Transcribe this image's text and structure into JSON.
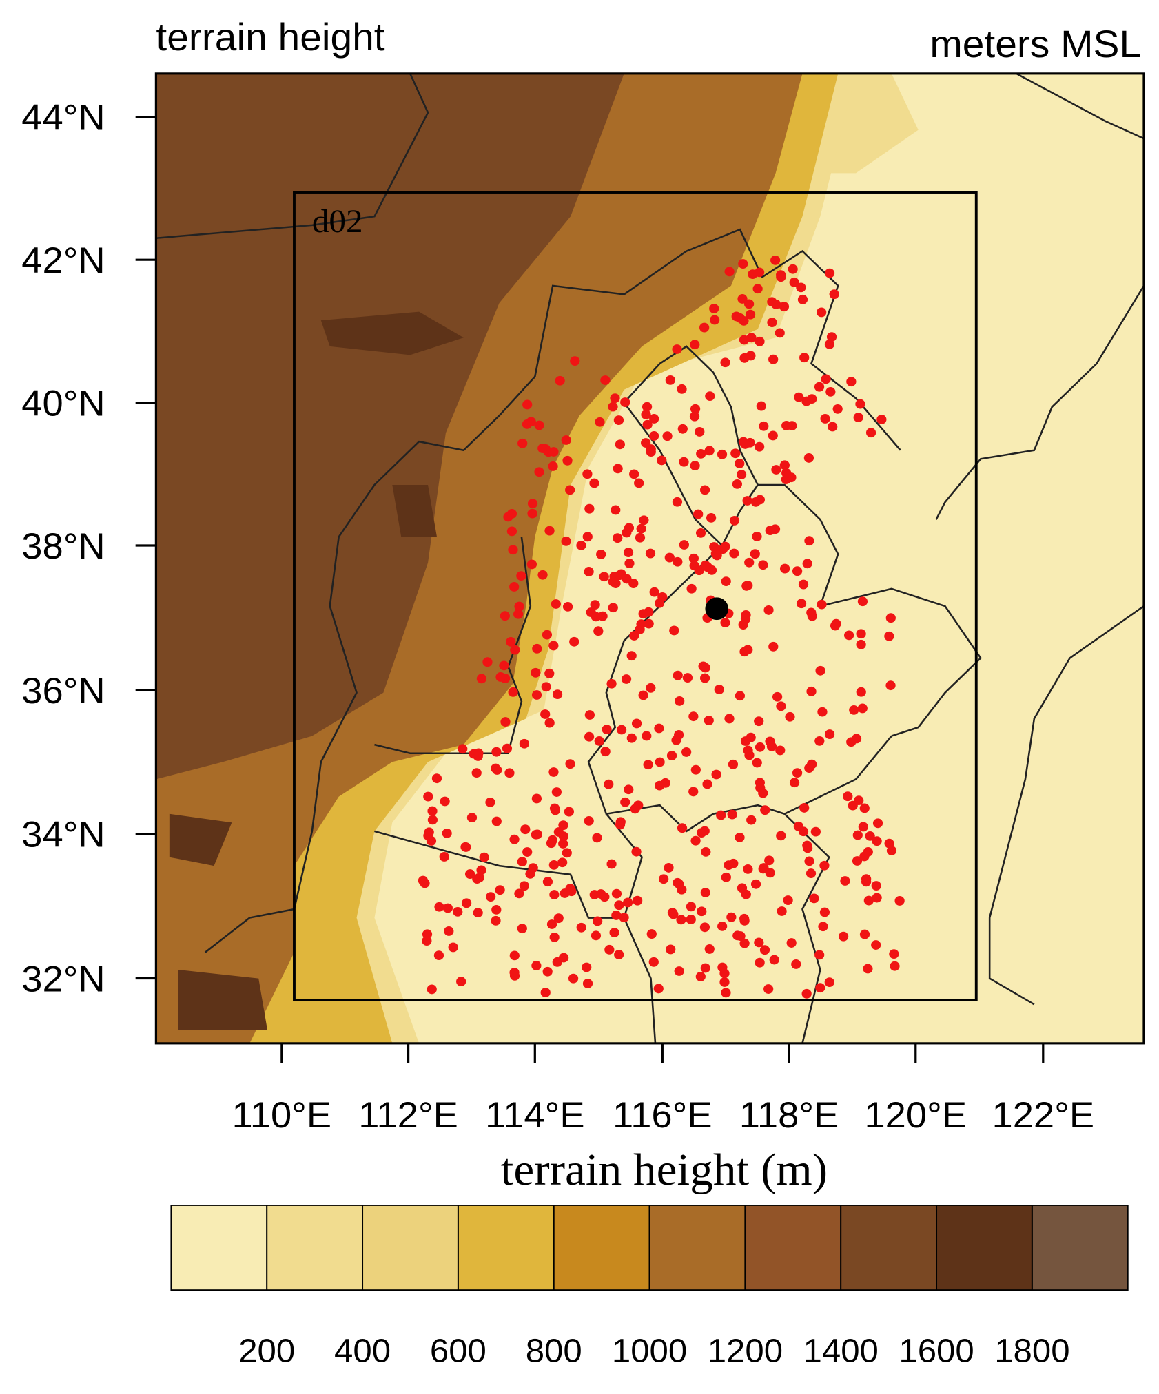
{
  "header": {
    "title": "terrain height",
    "units": "meters MSL"
  },
  "map": {
    "domain_label": "d02",
    "lat_labels": [
      "44°N",
      "42°N",
      "40°N",
      "38°N",
      "36°N",
      "34°N",
      "32°N"
    ],
    "lon_labels": [
      "110°E",
      "112°E",
      "114°E",
      "116°E",
      "118°E",
      "120°E",
      "122°E"
    ]
  },
  "colorbar": {
    "title": "terrain height (m)",
    "levels": [
      200,
      400,
      600,
      800,
      1000,
      1200,
      1400,
      1600,
      1800
    ],
    "colors": [
      "#f8ecb4",
      "#f1dc8f",
      "#ecd27c",
      "#e0b63c",
      "#c8891e",
      "#a96c28",
      "#925428",
      "#7a4823",
      "#5e3318",
      "#75553e"
    ]
  }
}
